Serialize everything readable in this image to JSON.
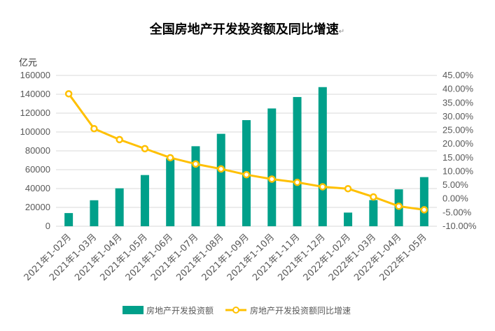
{
  "chart_data": {
    "type": "bar+line",
    "title": "全国房地产开发投资额及同比增速",
    "title_mark": "↵",
    "ylabel_left": "亿元",
    "categories": [
      "2021年1-02月",
      "2021年1-03月",
      "2021年1-04月",
      "2021年1-05月",
      "2021年1-06月",
      "2021年1-07月",
      "2021年1-08月",
      "2021年1-09月",
      "2021年1-10月",
      "2021年1-11月",
      "2021年1-12月",
      "2022年1-02月",
      "2022年1-03月",
      "2022年1-04月",
      "2022年1-05月"
    ],
    "series": [
      {
        "name": "房地产开发投资额",
        "type": "bar",
        "axis": "left",
        "color": "#00a08a",
        "values": [
          13986,
          27576,
          40240,
          54318,
          72179,
          84895,
          98060,
          112568,
          124934,
          137086,
          147602,
          14499,
          27765,
          39154,
          52134
        ]
      },
      {
        "name": "房地产开发投资额同比增速",
        "type": "line",
        "axis": "right",
        "color": "#ffc000",
        "values": [
          38.3,
          25.6,
          21.6,
          18.3,
          15.0,
          12.7,
          10.9,
          8.8,
          7.2,
          6.0,
          4.4,
          3.7,
          0.7,
          -2.7,
          -4.0
        ]
      }
    ],
    "ylim_left": [
      0,
      160000
    ],
    "yticks_left": [
      "0",
      "20000",
      "40000",
      "60000",
      "80000",
      "100000",
      "120000",
      "140000",
      "160000"
    ],
    "ylim_right": [
      -10,
      45
    ],
    "yticks_right": [
      "-10.00%",
      "-5.00%",
      "0.00%",
      "5.00%",
      "10.00%",
      "15.00%",
      "20.00%",
      "25.00%",
      "30.00%",
      "35.00%",
      "40.00%",
      "45.00%"
    ],
    "grid": true,
    "legend": "bottom-center"
  }
}
